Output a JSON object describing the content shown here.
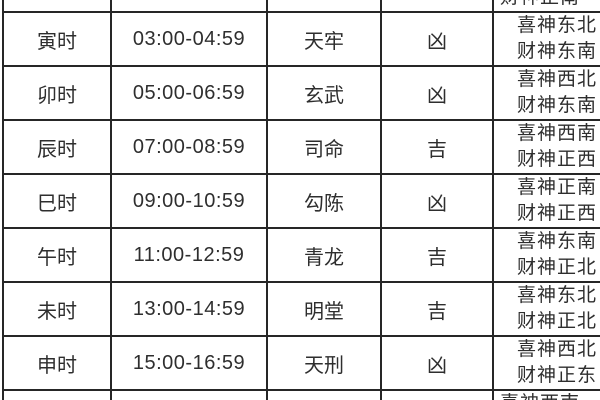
{
  "table": {
    "description_keys": [
      "hour",
      "time",
      "star",
      "luck",
      "xishen_direction",
      "caishen_direction"
    ],
    "partial_top": {
      "visible_line": "财神正南"
    },
    "rows": [
      {
        "hour": "寅时",
        "time": "03:00-04:59",
        "star": "天牢",
        "luck": "凶",
        "dir1": "喜神东北",
        "dir2": "财神东南"
      },
      {
        "hour": "卯时",
        "time": "05:00-06:59",
        "star": "玄武",
        "luck": "凶",
        "dir1": "喜神西北",
        "dir2": "财神东南"
      },
      {
        "hour": "辰时",
        "time": "07:00-08:59",
        "star": "司命",
        "luck": "吉",
        "dir1": "喜神西南",
        "dir2": "财神正西"
      },
      {
        "hour": "巳时",
        "time": "09:00-10:59",
        "star": "勾陈",
        "luck": "凶",
        "dir1": "喜神正南",
        "dir2": "财神正西"
      },
      {
        "hour": "午时",
        "time": "11:00-12:59",
        "star": "青龙",
        "luck": "吉",
        "dir1": "喜神东南",
        "dir2": "财神正北"
      },
      {
        "hour": "未时",
        "time": "13:00-14:59",
        "star": "明堂",
        "luck": "吉",
        "dir1": "喜神东北",
        "dir2": "财神正北"
      },
      {
        "hour": "申时",
        "time": "15:00-16:59",
        "star": "天刑",
        "luck": "凶",
        "dir1": "喜神西北",
        "dir2": "财神正东"
      }
    ],
    "partial_bottom": {
      "visible_line": "喜神西南"
    }
  },
  "colors": {
    "border": "#262626",
    "text": "#2e2e2e",
    "background": "#ffffff"
  }
}
